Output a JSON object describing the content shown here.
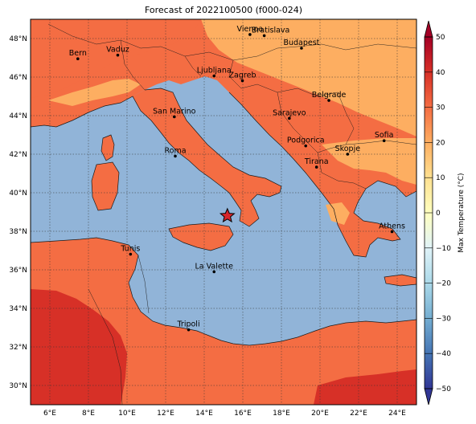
{
  "title": "Forecast of 2022100500 (f000-024)",
  "colors": {
    "sea": "#91b4d8",
    "land_warm": "#fdae61",
    "land_hot": "#f46d43",
    "land_very_hot": "#d73027",
    "cold": "#4575b4"
  },
  "x_ticks": [
    "6°E",
    "8°E",
    "10°E",
    "12°E",
    "14°E",
    "16°E",
    "18°E",
    "20°E",
    "22°E",
    "24°E"
  ],
  "y_ticks": [
    "48°N",
    "46°N",
    "44°N",
    "42°N",
    "40°N",
    "38°N",
    "36°N",
    "34°N",
    "32°N",
    "30°N"
  ],
  "cities": [
    {
      "name": "Bern"
    },
    {
      "name": "Vaduz"
    },
    {
      "name": "Vienna"
    },
    {
      "name": "Bratislava"
    },
    {
      "name": "Budapest"
    },
    {
      "name": "Ljubljana"
    },
    {
      "name": "Zagreb"
    },
    {
      "name": "Belgrade"
    },
    {
      "name": "San Marino"
    },
    {
      "name": "Sarajevo"
    },
    {
      "name": "Podgorica"
    },
    {
      "name": "Sofia"
    },
    {
      "name": "Skopje"
    },
    {
      "name": "Roma"
    },
    {
      "name": "Tirana"
    },
    {
      "name": "Athens"
    },
    {
      "name": "Tunis"
    },
    {
      "name": "La Valette"
    },
    {
      "name": "Tripoli"
    }
  ],
  "marker": {
    "icon": "star-icon",
    "lon": 15.2,
    "lat": 38.8
  },
  "colorbar": {
    "label": "Max Temperature (°C)",
    "ticks": [
      "50",
      "40",
      "30",
      "20",
      "10",
      "0",
      "−10",
      "−20",
      "−30",
      "−40",
      "−50"
    ]
  }
}
